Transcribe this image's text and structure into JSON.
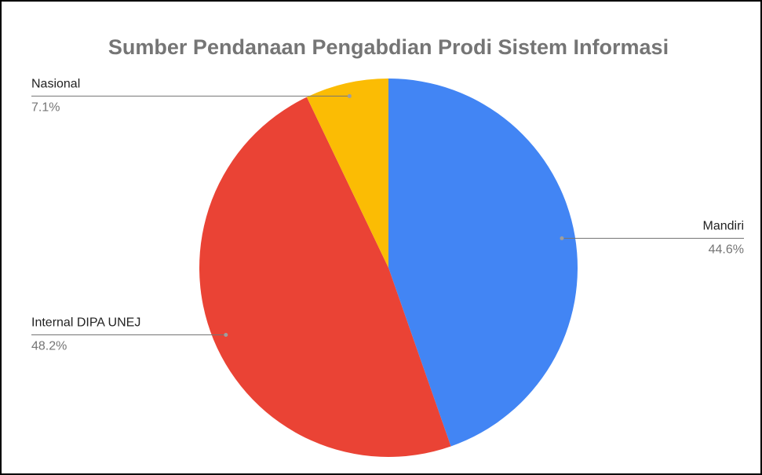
{
  "chart_data": {
    "type": "pie",
    "title": "Sumber Pendanaan Pengabdian Prodi Sistem Informasi",
    "categories": [
      "Mandiri",
      "Internal DIPA UNEJ",
      "Nasional"
    ],
    "values": [
      44.6,
      48.2,
      7.1
    ],
    "value_labels": [
      "44.6%",
      "48.2%",
      "7.1%"
    ],
    "colors": [
      "#4285f4",
      "#ea4335",
      "#fbbc04"
    ]
  }
}
